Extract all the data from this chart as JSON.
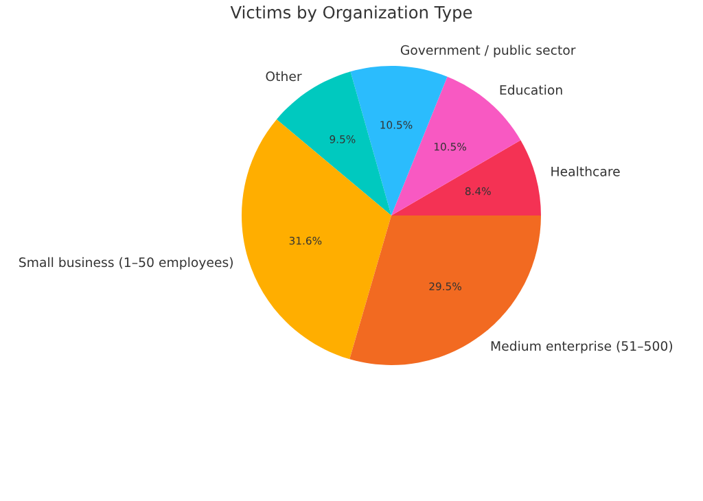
{
  "chart_data": {
    "type": "pie",
    "title": "Victims by Organization Type",
    "categories": [
      "Healthcare",
      "Education",
      "Government / public sector",
      "Other",
      "Small business (1–50 employees)",
      "Medium enterprise (51–500)"
    ],
    "values": [
      8.4,
      10.5,
      10.5,
      9.5,
      31.6,
      29.5
    ],
    "colors": [
      "#f43254",
      "#f859c2",
      "#2bbcfd",
      "#00c9bf",
      "#ffae00",
      "#f26a21"
    ],
    "value_labels": [
      "8.4%",
      "10.5%",
      "10.5%",
      "9.5%",
      "31.6%",
      "29.5%"
    ]
  }
}
